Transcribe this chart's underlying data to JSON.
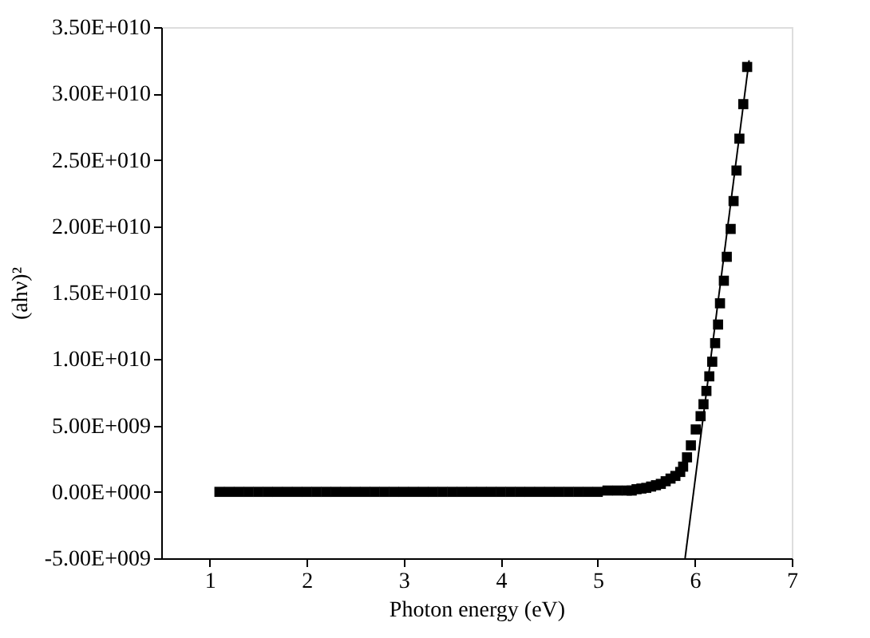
{
  "chart_data": {
    "type": "scatter",
    "xlabel": "Photon energy (eV)",
    "ylabel": "(ahν)²",
    "xlim": [
      0.5,
      7
    ],
    "xticks": [
      1,
      2,
      3,
      4,
      5,
      6,
      7
    ],
    "ylim": [
      -5000000000,
      35000000000
    ],
    "yticks": [
      {
        "value": -5000000000,
        "label": "-5.00E+009"
      },
      {
        "value": 0,
        "label": "0.00E+000"
      },
      {
        "value": 5000000000,
        "label": "5.00E+009"
      },
      {
        "value": 10000000000,
        "label": "1.00E+010"
      },
      {
        "value": 15000000000,
        "label": "1.50E+010"
      },
      {
        "value": 20000000000,
        "label": "2.00E+010"
      },
      {
        "value": 25000000000,
        "label": "2.50E+010"
      },
      {
        "value": 30000000000,
        "label": "3.00E+010"
      },
      {
        "value": 35000000000,
        "label": "3.50E+010"
      }
    ],
    "grid": false,
    "series": [
      {
        "marker": "square",
        "color": "#000000",
        "x": [
          1.1,
          1.2,
          1.3,
          1.4,
          1.5,
          1.6,
          1.7,
          1.8,
          1.9,
          2.0,
          2.1,
          2.2,
          2.3,
          2.4,
          2.5,
          2.6,
          2.7,
          2.8,
          2.9,
          3.0,
          3.1,
          3.2,
          3.3,
          3.4,
          3.5,
          3.6,
          3.7,
          3.8,
          3.9,
          4.0,
          4.1,
          4.2,
          4.3,
          4.4,
          4.5,
          4.6,
          4.7,
          4.8,
          4.9,
          5.0,
          5.1,
          5.2,
          5.3,
          5.35,
          5.4,
          5.45,
          5.5,
          5.55,
          5.6,
          5.65,
          5.7,
          5.75,
          5.8,
          5.85,
          5.88,
          5.92,
          5.96,
          6.01,
          6.06,
          6.09,
          6.12,
          6.15,
          6.18,
          6.21,
          6.24,
          6.26,
          6.3,
          6.33,
          6.37,
          6.4,
          6.43,
          6.46,
          6.5,
          6.54
        ],
        "values": [
          0,
          0,
          0,
          0,
          0,
          0,
          0,
          0,
          0,
          0,
          0,
          0,
          0,
          0,
          0,
          0,
          0,
          0,
          0,
          0,
          0,
          0,
          0,
          0,
          0,
          0,
          0,
          0,
          0,
          0,
          0,
          0,
          0,
          0,
          0,
          0,
          0,
          0,
          0,
          0,
          100000000,
          100000000,
          100000000,
          100000000,
          200000000,
          250000000,
          300000000,
          400000000,
          500000000,
          600000000,
          800000000,
          1000000000,
          1200000000,
          1500000000,
          1900000000,
          2600000000,
          3500000000,
          4700000000,
          5700000000,
          6600000000,
          7600000000,
          8700000000,
          9800000000,
          11200000000,
          12600000000,
          14200000000,
          15900000000,
          17700000000,
          19800000000,
          21900000000,
          24200000000,
          26600000000,
          29200000000,
          32000000000
        ]
      },
      {
        "type": "line",
        "line_style": "solid",
        "color": "#000000",
        "x": [
          5.9,
          6.56
        ],
        "values": [
          -5000000000,
          32500000000
        ]
      }
    ]
  }
}
